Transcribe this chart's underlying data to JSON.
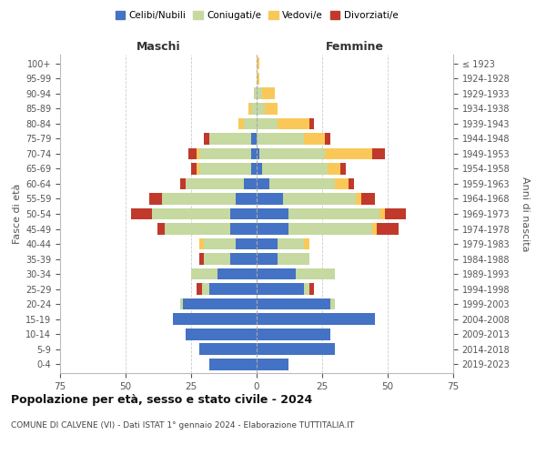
{
  "age_groups": [
    "0-4",
    "5-9",
    "10-14",
    "15-19",
    "20-24",
    "25-29",
    "30-34",
    "35-39",
    "40-44",
    "45-49",
    "50-54",
    "55-59",
    "60-64",
    "65-69",
    "70-74",
    "75-79",
    "80-84",
    "85-89",
    "90-94",
    "95-99",
    "100+"
  ],
  "birth_years": [
    "2019-2023",
    "2014-2018",
    "2009-2013",
    "2004-2008",
    "1999-2003",
    "1994-1998",
    "1989-1993",
    "1984-1988",
    "1979-1983",
    "1974-1978",
    "1969-1973",
    "1964-1968",
    "1959-1963",
    "1954-1958",
    "1949-1953",
    "1944-1948",
    "1939-1943",
    "1934-1938",
    "1929-1933",
    "1924-1928",
    "≤ 1923"
  ],
  "colors": {
    "celibi": "#4472c4",
    "coniugati": "#c5d9a0",
    "vedovi": "#fac858",
    "divorziati": "#c0392b"
  },
  "maschi": {
    "celibi": [
      18,
      22,
      27,
      32,
      28,
      18,
      15,
      10,
      8,
      10,
      10,
      8,
      5,
      2,
      2,
      2,
      0,
      0,
      0,
      0,
      0
    ],
    "coniugati": [
      0,
      0,
      0,
      0,
      1,
      3,
      10,
      10,
      12,
      25,
      30,
      28,
      22,
      20,
      20,
      16,
      5,
      2,
      1,
      0,
      0
    ],
    "vedovi": [
      0,
      0,
      0,
      0,
      0,
      0,
      0,
      0,
      2,
      0,
      0,
      0,
      0,
      1,
      1,
      0,
      2,
      1,
      0,
      0,
      0
    ],
    "divorziati": [
      0,
      0,
      0,
      0,
      0,
      2,
      0,
      2,
      0,
      3,
      8,
      5,
      2,
      2,
      3,
      2,
      0,
      0,
      0,
      0,
      0
    ]
  },
  "femmine": {
    "celibi": [
      12,
      30,
      28,
      45,
      28,
      18,
      15,
      8,
      8,
      12,
      12,
      10,
      5,
      2,
      1,
      0,
      0,
      0,
      0,
      0,
      0
    ],
    "coniugati": [
      0,
      0,
      0,
      0,
      2,
      2,
      15,
      12,
      10,
      32,
      35,
      28,
      25,
      25,
      25,
      18,
      8,
      3,
      2,
      0,
      0
    ],
    "vedovi": [
      0,
      0,
      0,
      0,
      0,
      0,
      0,
      0,
      2,
      2,
      2,
      2,
      5,
      5,
      18,
      8,
      12,
      5,
      5,
      1,
      1
    ],
    "divorziati": [
      0,
      0,
      0,
      0,
      0,
      2,
      0,
      0,
      0,
      8,
      8,
      5,
      2,
      2,
      5,
      2,
      2,
      0,
      0,
      0,
      0
    ]
  },
  "xlim": 75,
  "title": "Popolazione per età, sesso e stato civile - 2024",
  "subtitle": "COMUNE DI CALVENE (VI) - Dati ISTAT 1° gennaio 2024 - Elaborazione TUTTITALIA.IT",
  "ylabel_left": "Fasce di età",
  "ylabel_right": "Anni di nascita",
  "maschi_label": "Maschi",
  "femmine_label": "Femmine"
}
